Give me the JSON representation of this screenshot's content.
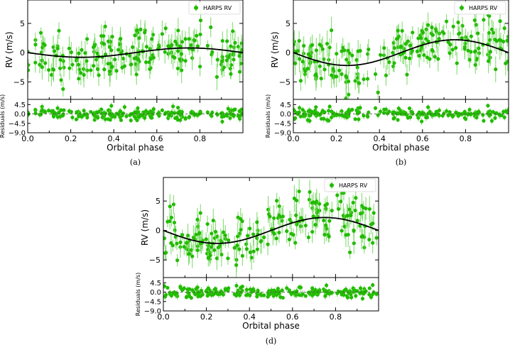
{
  "chart_data": [
    {
      "type": "scatter",
      "panel_label": "(a)",
      "legend": "HARPS RV",
      "legend_position": "top-right",
      "xlabel": "Orbital phase",
      "ylabel": "RV (m/s)",
      "residual_ylabel": "Residuals (m/s)",
      "xlim": [
        0.0,
        1.0
      ],
      "ylim": [
        -8,
        9
      ],
      "residual_ylim": [
        -9,
        7
      ],
      "xticks": [
        "0.0",
        "0.2",
        "0.4",
        "0.6",
        "0.8"
      ],
      "yticks": [
        "5",
        "0",
        "−5"
      ],
      "residual_yticks": [
        "4.5",
        "0.0",
        "−4.5",
        "−9.0"
      ],
      "model": {
        "type": "sine",
        "amplitude": 0.8,
        "min_phase": 0.25,
        "max_phase": 0.75
      },
      "marker_color": "#22bb00",
      "model_color": "#000000",
      "rv_scatter_sd": 2.2,
      "residual_scatter_sd": 1.3
    },
    {
      "type": "scatter",
      "panel_label": "(b)",
      "legend": "HARPS RV",
      "legend_position": "top-right",
      "xlabel": "Orbital phase",
      "ylabel": "RV (m/s)",
      "residual_ylabel": "Residuals (m/s)",
      "xlim": [
        0.0,
        1.0
      ],
      "ylim": [
        -8,
        9
      ],
      "residual_ylim": [
        -9,
        7
      ],
      "xticks": [
        "0.0",
        "0.2",
        "0.4",
        "0.6",
        "0.8"
      ],
      "yticks": [
        "5",
        "0",
        "−5"
      ],
      "residual_yticks": [
        "4.5",
        "0.0",
        "−4.5",
        "−9.0"
      ],
      "model": {
        "type": "sine",
        "amplitude": 2.2,
        "min_phase": 0.25,
        "max_phase": 0.75
      },
      "marker_color": "#22bb00",
      "model_color": "#000000",
      "rv_scatter_sd": 2.2,
      "residual_scatter_sd": 1.3
    },
    {
      "type": "scatter",
      "panel_label": "(d)",
      "legend": "HARPS RV",
      "legend_position": "top-right",
      "xlabel": "Orbital phase",
      "ylabel": "RV (m/s)",
      "residual_ylabel": "Residuals (m/s)",
      "xlim": [
        0.0,
        1.0
      ],
      "ylim": [
        -8,
        9
      ],
      "residual_ylim": [
        -9,
        7
      ],
      "xticks": [
        "0.0",
        "0.2",
        "0.4",
        "0.6",
        "0.8"
      ],
      "yticks": [
        "5",
        "0",
        "−5"
      ],
      "residual_yticks": [
        "4.5",
        "0.0",
        "−4.5",
        "−9.0"
      ],
      "model": {
        "type": "sine",
        "amplitude": 2.2,
        "min_phase": 0.25,
        "max_phase": 0.75
      },
      "marker_color": "#22bb00",
      "model_color": "#000000",
      "rv_scatter_sd": 2.2,
      "residual_scatter_sd": 1.3
    }
  ]
}
